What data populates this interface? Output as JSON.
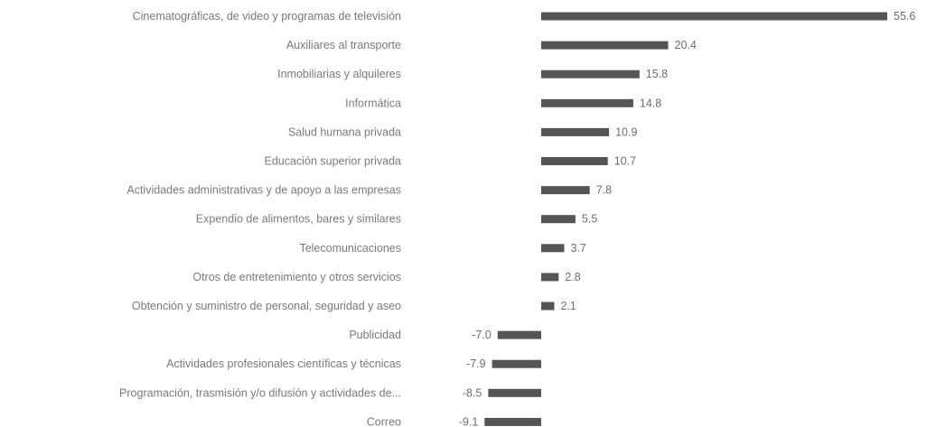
{
  "chart_data": {
    "type": "bar",
    "orientation": "horizontal",
    "title": "",
    "xlabel": "",
    "ylabel": "",
    "bar_color": "#555555",
    "grid": false,
    "categories": [
      "Cinematográficas, de video y programas de televisión",
      "Auxiliares al transporte",
      "Inmobiliarias y alquileres",
      "Informática",
      "Salud humana privada",
      "Educación superior privada",
      "Actividades administrativas y de apoyo a las empresas",
      "Expendio de alimentos, bares y similares",
      "Telecomunicaciones",
      "Otros de entretenimiento y otros servicios",
      "Obtención y suministro de personal, seguridad y aseo",
      "Publicidad",
      "Actividades profesionales científicas y técnicas",
      "Programación, trasmisión y/o difusión y actividades de...",
      "Correo"
    ],
    "values": [
      55.6,
      20.4,
      15.8,
      14.8,
      10.9,
      10.7,
      7.8,
      5.5,
      3.7,
      2.8,
      2.1,
      -7.0,
      -7.9,
      -8.5,
      -9.1
    ],
    "value_labels": [
      "55.6",
      "20.4",
      "15.8",
      "14.8",
      "10.9",
      "10.7",
      "7.8",
      "5.5",
      "3.7",
      "2.8",
      "2.1",
      "-7.0",
      "-7.9",
      "-8.5",
      "-9.1"
    ]
  }
}
